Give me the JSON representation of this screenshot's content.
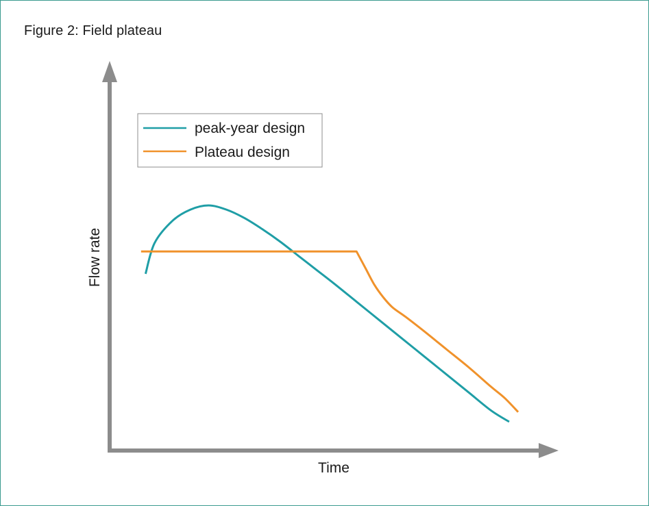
{
  "figure_title": "Figure 2: Field plateau",
  "colors": {
    "axis": "#8c8c8c",
    "peak_year": "#1f9ea6",
    "plateau": "#f0922b",
    "border": "#3a9a8f"
  },
  "chart_data": {
    "type": "line",
    "title": "Figure 2: Field plateau",
    "xlabel": "Time",
    "ylabel": "Flow rate",
    "xlim": [
      0,
      100
    ],
    "ylim": [
      0,
      100
    ],
    "ticks": false,
    "grid": false,
    "legend_position": "top-left",
    "series": [
      {
        "name": "peak-year design",
        "color": "#1f9ea6",
        "x": [
          8,
          10,
          14,
          18,
          22,
          26,
          30,
          34,
          38,
          42,
          46,
          50,
          55,
          60,
          65,
          70,
          75,
          80,
          85,
          89
        ],
        "y": [
          47,
          58,
          66,
          70,
          71.5,
          70,
          67,
          63,
          58.5,
          53.5,
          48.5,
          43.5,
          37,
          30.5,
          24,
          17.5,
          11,
          4.5,
          -2,
          -6
        ]
      },
      {
        "name": "Plateau design",
        "color": "#f0922b",
        "x": [
          7,
          55,
          57,
          59,
          61,
          63,
          66,
          70,
          75,
          80,
          85,
          88,
          91
        ],
        "y": [
          55,
          55,
          49,
          43,
          38.5,
          35,
          31.5,
          26.5,
          20,
          13.5,
          6.5,
          2.5,
          -2.5
        ]
      }
    ]
  }
}
